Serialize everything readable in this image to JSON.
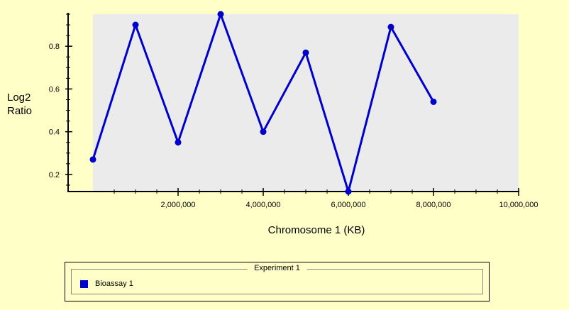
{
  "chart_data": {
    "type": "line",
    "title": "",
    "xlabel": "Chromosome 1 (KB)",
    "ylabel": "Log2 Ratio",
    "ylabel_lines": [
      "Log2",
      "Ratio"
    ],
    "xlim": [
      0,
      10000000
    ],
    "ylim": [
      0.12,
      0.95
    ],
    "x_ticks": [
      2000000,
      4000000,
      6000000,
      8000000,
      10000000
    ],
    "x_tick_labels": [
      "2,000,000",
      "4,000,000",
      "6,000,000",
      "8,000,000",
      "10,000,000"
    ],
    "y_ticks": [
      0.2,
      0.4,
      0.6,
      0.8
    ],
    "y_tick_labels": [
      "0.2",
      "0.4",
      "0.6",
      "0.8"
    ],
    "grid": false,
    "legend": {
      "title": "Experiment 1",
      "placement": "bottom",
      "entries": [
        "Bioassay 1"
      ]
    },
    "series": [
      {
        "name": "Bioassay 1",
        "color": "#0000cc",
        "x": [
          0,
          1000000,
          2000000,
          3000000,
          4000000,
          5000000,
          6000000,
          7000000,
          8000000
        ],
        "y": [
          0.27,
          0.9,
          0.35,
          0.95,
          0.4,
          0.77,
          0.12,
          0.89,
          0.54
        ]
      }
    ],
    "colors": {
      "background": "#ffffc8",
      "plot_area": "#ebebeb",
      "series": "#0000cc"
    }
  }
}
